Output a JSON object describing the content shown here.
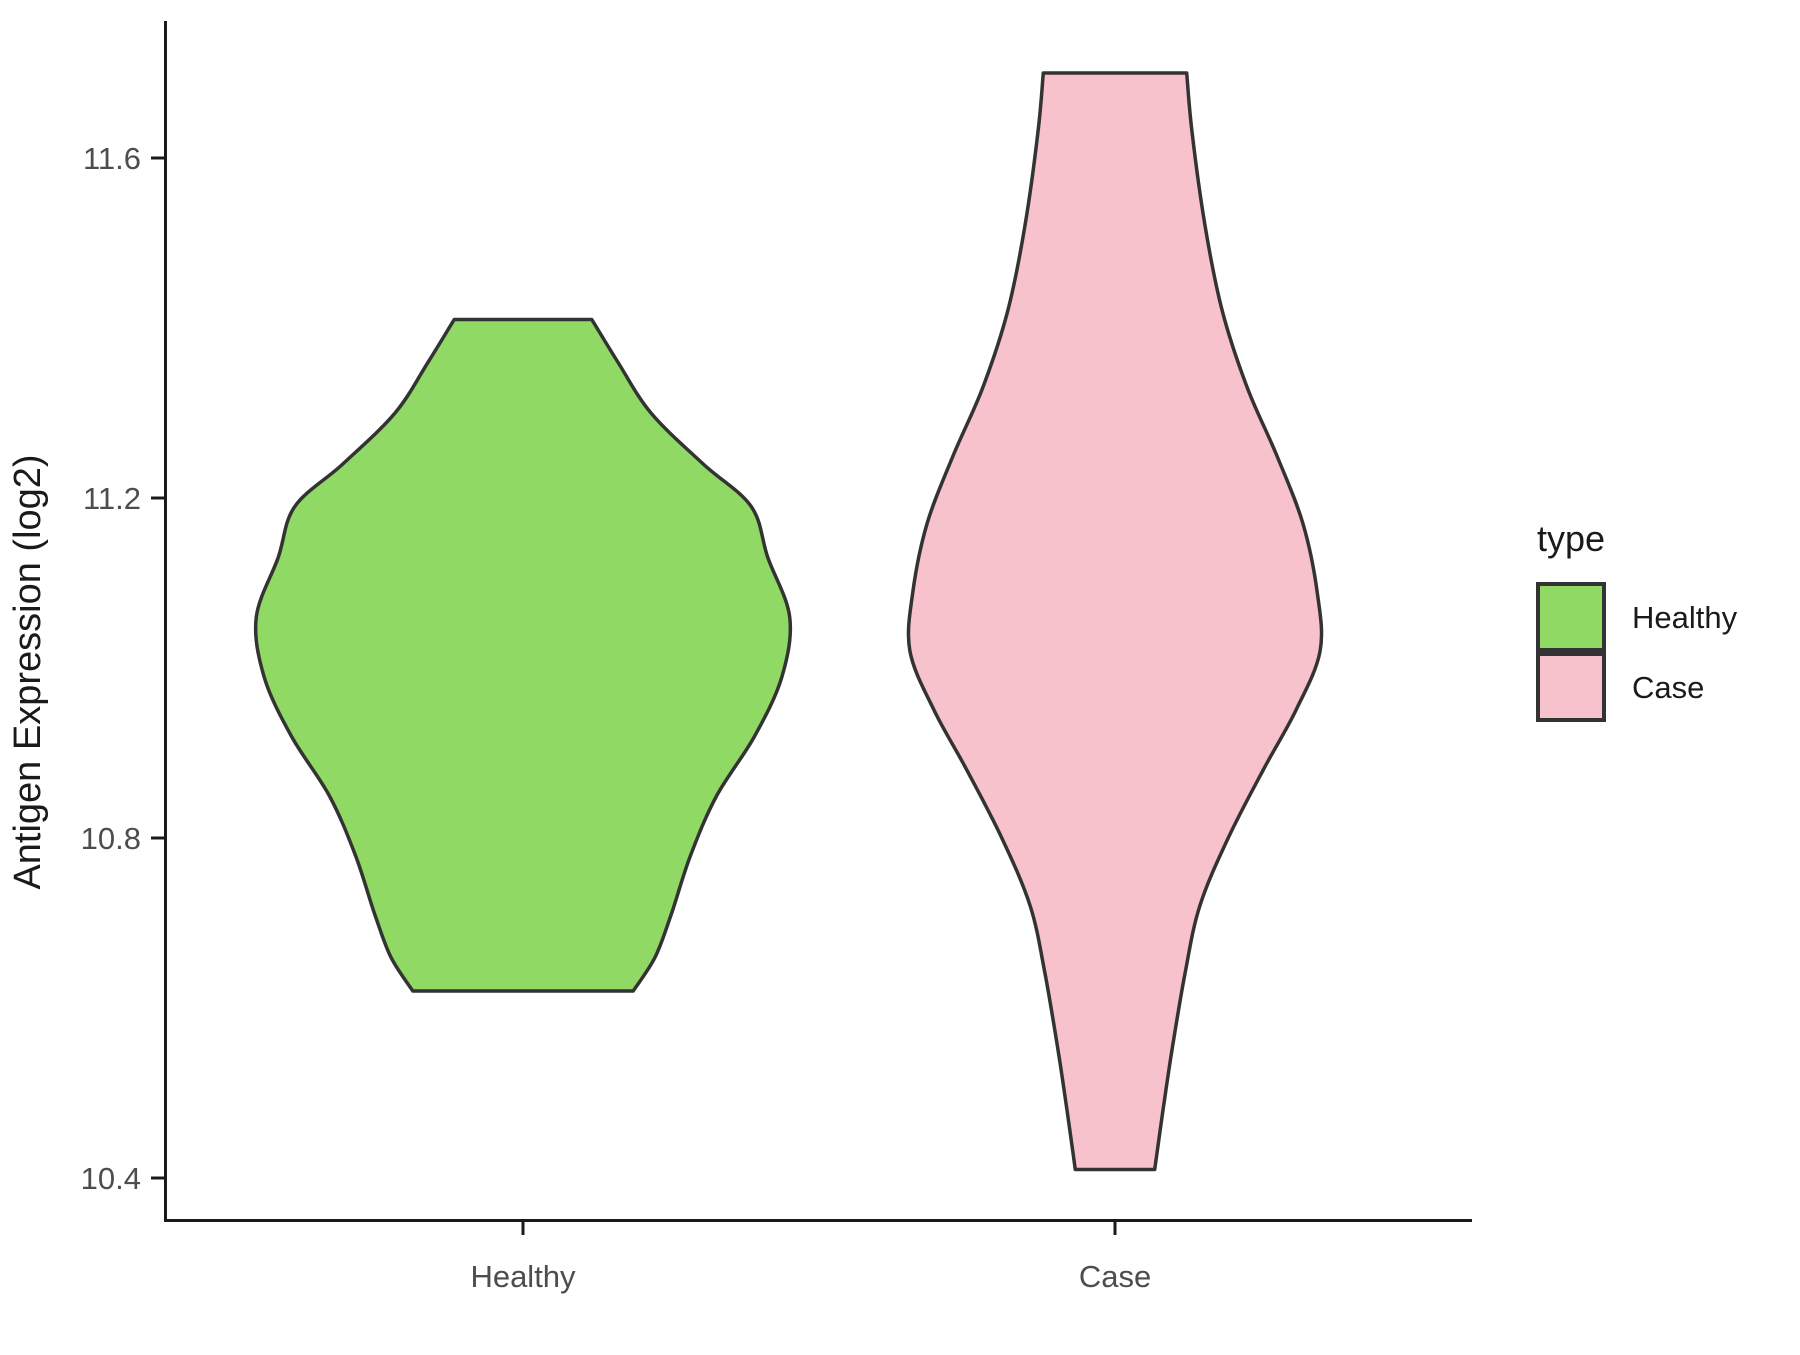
{
  "chart_data": {
    "type": "violin",
    "title": "",
    "xlabel": "",
    "ylabel": "Antigen Expression (log2)",
    "categories": [
      "Healthy",
      "Case"
    ],
    "y_axis": {
      "range": [
        10.35,
        11.76
      ],
      "ticks": [
        {
          "value": 11.6,
          "label": "11.6"
        },
        {
          "value": 11.2,
          "label": "11.2"
        },
        {
          "value": 10.8,
          "label": "10.8"
        },
        {
          "value": 10.4,
          "label": "10.4"
        }
      ]
    },
    "legend": {
      "title": "type",
      "position": "right",
      "entries": [
        {
          "label": "Healthy",
          "color": "#90D964"
        },
        {
          "label": "Case",
          "color": "#F8C2CD"
        }
      ]
    },
    "style": {
      "axis_color": "#1a1a1a",
      "tick_label_color": "#4d4d4d",
      "outline_color": "#333333",
      "grid": "off",
      "background": "#ffffff"
    },
    "series": [
      {
        "name": "Healthy",
        "x_position": 1,
        "fill": "#90D964",
        "outline": "#333333",
        "y_min": 10.62,
        "y_max": 11.41,
        "profile": [
          {
            "v": 11.41,
            "w": 0.116
          },
          {
            "v": 11.36,
            "w": 0.16
          },
          {
            "v": 11.3,
            "w": 0.216
          },
          {
            "v": 11.24,
            "w": 0.304
          },
          {
            "v": 11.19,
            "w": 0.385
          },
          {
            "v": 11.13,
            "w": 0.413
          },
          {
            "v": 11.06,
            "w": 0.45
          },
          {
            "v": 10.99,
            "w": 0.437
          },
          {
            "v": 10.92,
            "w": 0.391
          },
          {
            "v": 10.85,
            "w": 0.327
          },
          {
            "v": 10.78,
            "w": 0.283
          },
          {
            "v": 10.71,
            "w": 0.25
          },
          {
            "v": 10.66,
            "w": 0.223
          },
          {
            "v": 10.62,
            "w": 0.186
          }
        ]
      },
      {
        "name": "Case",
        "x_position": 2,
        "fill": "#F8C2CD",
        "outline": "#333333",
        "y_min": 10.41,
        "y_max": 11.7,
        "profile": [
          {
            "v": 11.7,
            "w": 0.121
          },
          {
            "v": 11.63,
            "w": 0.13
          },
          {
            "v": 11.52,
            "w": 0.152
          },
          {
            "v": 11.42,
            "w": 0.181
          },
          {
            "v": 11.33,
            "w": 0.223
          },
          {
            "v": 11.25,
            "w": 0.273
          },
          {
            "v": 11.17,
            "w": 0.317
          },
          {
            "v": 11.09,
            "w": 0.341
          },
          {
            "v": 11.02,
            "w": 0.346
          },
          {
            "v": 10.95,
            "w": 0.305
          },
          {
            "v": 10.88,
            "w": 0.25
          },
          {
            "v": 10.8,
            "w": 0.191
          },
          {
            "v": 10.72,
            "w": 0.143
          },
          {
            "v": 10.64,
            "w": 0.118
          },
          {
            "v": 10.55,
            "w": 0.096
          },
          {
            "v": 10.47,
            "w": 0.079
          },
          {
            "v": 10.41,
            "w": 0.067
          }
        ]
      }
    ]
  }
}
